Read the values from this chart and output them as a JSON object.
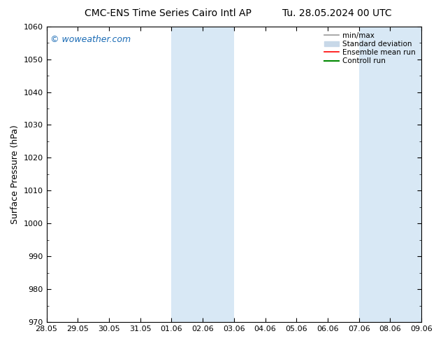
{
  "title_left": "CMC-ENS Time Series Cairo Intl AP",
  "title_right": "Tu. 28.05.2024 00 UTC",
  "ylabel": "Surface Pressure (hPa)",
  "ylim": [
    970,
    1060
  ],
  "yticks": [
    970,
    980,
    990,
    1000,
    1010,
    1020,
    1030,
    1040,
    1050,
    1060
  ],
  "x_tick_labels": [
    "28.05",
    "29.05",
    "30.05",
    "31.05",
    "01.06",
    "02.06",
    "03.06",
    "04.06",
    "05.06",
    "06.06",
    "07.06",
    "08.06",
    "09.06"
  ],
  "shaded_bands": [
    {
      "xmin": 4,
      "xmax": 6,
      "color": "#d8e8f5"
    },
    {
      "xmin": 10,
      "xmax": 12,
      "color": "#d8e8f5"
    }
  ],
  "watermark": "© woweather.com",
  "watermark_color": "#1a6bb5",
  "legend_items": [
    {
      "label": "min/max",
      "type": "line",
      "color": "#999999",
      "lw": 1.2
    },
    {
      "label": "Standard deviation",
      "type": "patch",
      "color": "#c8d8e8"
    },
    {
      "label": "Ensemble mean run",
      "type": "line",
      "color": "#ff0000",
      "lw": 1.2
    },
    {
      "label": "Controll run",
      "type": "line",
      "color": "#008800",
      "lw": 1.5
    }
  ],
  "bg_color": "#ffffff",
  "plot_bg_color": "#ffffff",
  "title_fontsize": 10,
  "ylabel_fontsize": 9,
  "tick_fontsize": 8,
  "legend_fontsize": 7.5,
  "watermark_fontsize": 9
}
